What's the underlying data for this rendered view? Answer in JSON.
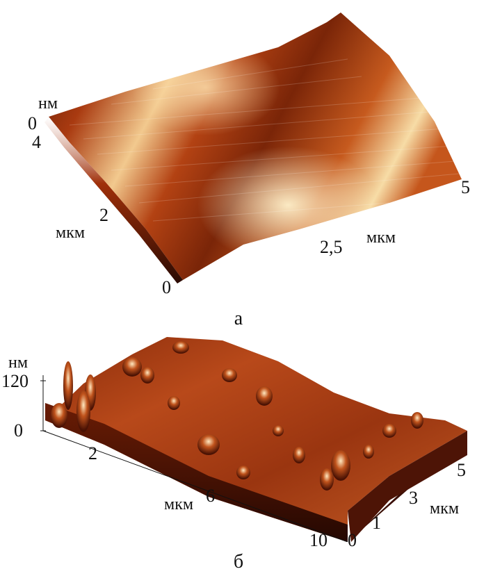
{
  "panel_a": {
    "caption": "а",
    "z_unit": "нм",
    "z_tick": "0",
    "y_ticks": [
      "4",
      "2",
      "0"
    ],
    "y_unit": "мкм",
    "x_ticks": [
      "2,5",
      "5"
    ],
    "x_unit": "мкм"
  },
  "panel_b": {
    "caption": "б",
    "z_unit": "нм",
    "z_ticks": [
      "120",
      "0"
    ],
    "x_ticks": [
      "2",
      "6",
      "10"
    ],
    "x_unit": "мкм",
    "y_ticks": [
      "0",
      "1",
      "3",
      "5"
    ],
    "y_unit": "мкм"
  },
  "colors": {
    "dark": "#3a0e04",
    "mid": "#b23e12",
    "light": "#f6d39a"
  }
}
